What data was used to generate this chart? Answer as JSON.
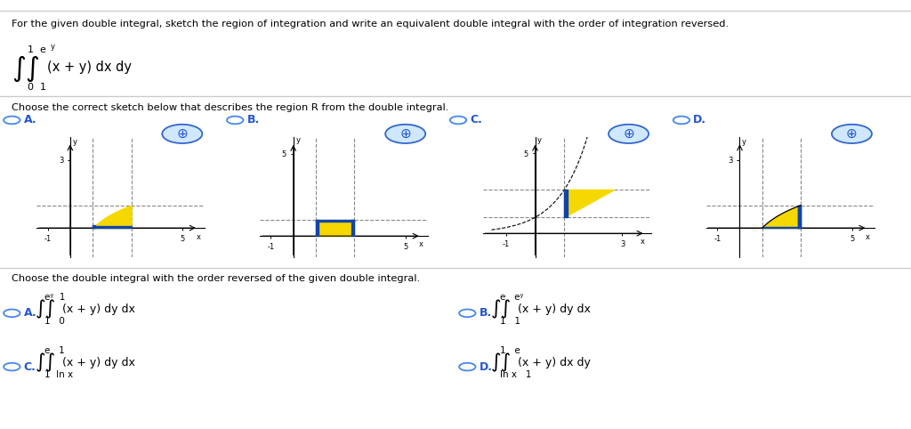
{
  "title_line": "For the given double integral, sketch the region of integration and write an equivalent double integral with the order of integration reversed.",
  "sketch_label": "Choose the correct sketch below that describes the region R from the double integral.",
  "reversed_label": "Choose the double integral with the order reversed of the given double integral.",
  "bg_color": "#ffffff",
  "text_color": "#000000",
  "blue_color": "#2255cc",
  "option_circle_color": "#4488ee",
  "fill_yellow": "#f5d800",
  "fill_blue": "#1144aa",
  "separator_color": "#cccccc"
}
